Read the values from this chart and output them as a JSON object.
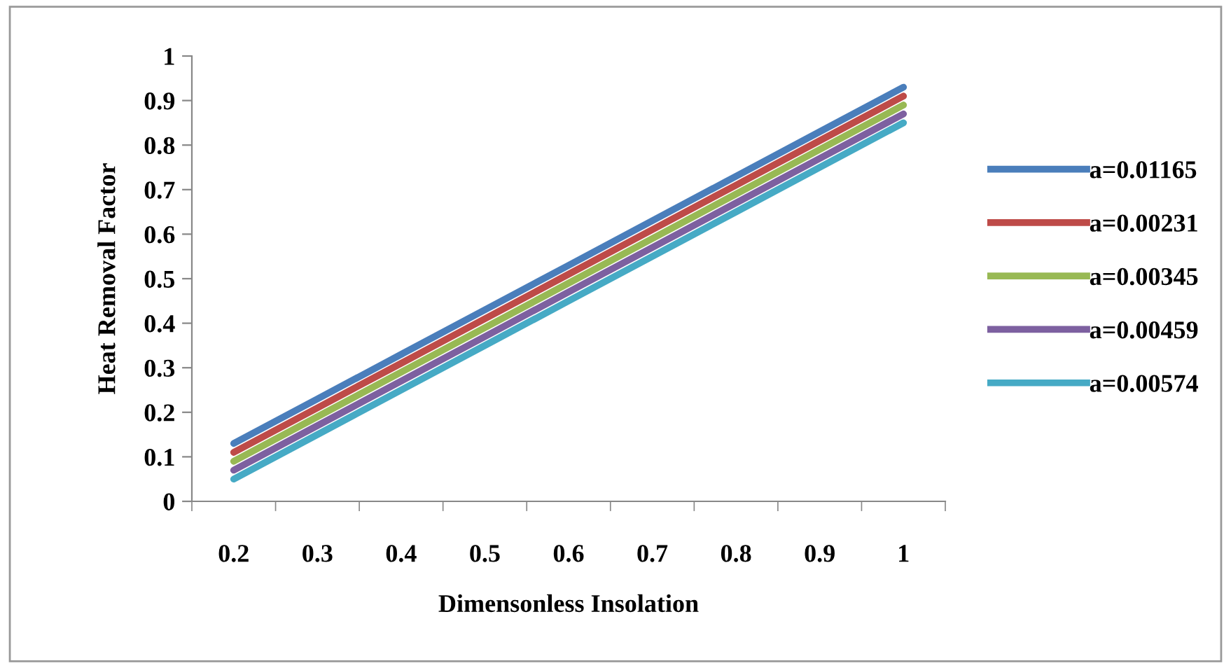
{
  "chart_data": {
    "type": "line",
    "xlabel": "Dimensonless Insolation",
    "ylabel": "Heat Removal Factor",
    "categories": [
      "0.2",
      "0.3",
      "0.4",
      "0.5",
      "0.6",
      "0.7",
      "0.8",
      "0.9",
      "1"
    ],
    "series": [
      {
        "name": "a=0.01165",
        "color": "#4a7ebb",
        "values": [
          0.13,
          0.23,
          0.33,
          0.43,
          0.53,
          0.63,
          0.73,
          0.83,
          0.93
        ]
      },
      {
        "name": "a=0.00231",
        "color": "#be4b48",
        "values": [
          0.11,
          0.21,
          0.31,
          0.41,
          0.51,
          0.61,
          0.71,
          0.81,
          0.91
        ]
      },
      {
        "name": "a=0.00345",
        "color": "#98b954",
        "values": [
          0.09,
          0.19,
          0.29,
          0.39,
          0.49,
          0.59,
          0.69,
          0.79,
          0.89
        ]
      },
      {
        "name": "a=0.00459",
        "color": "#7d60a0",
        "values": [
          0.07,
          0.17,
          0.27,
          0.37,
          0.47,
          0.57,
          0.67,
          0.77,
          0.87
        ]
      },
      {
        "name": "a=0.00574",
        "color": "#46aac5",
        "values": [
          0.05,
          0.15,
          0.25,
          0.35,
          0.45,
          0.55,
          0.65,
          0.75,
          0.85
        ]
      }
    ],
    "ylim": [
      0,
      1
    ],
    "yticks": [
      0,
      0.1,
      0.2,
      0.3,
      0.4,
      0.5,
      0.6,
      0.7,
      0.8,
      0.9,
      1
    ],
    "grid": false,
    "legend": "right",
    "marker": "none",
    "line_style": "solid"
  }
}
